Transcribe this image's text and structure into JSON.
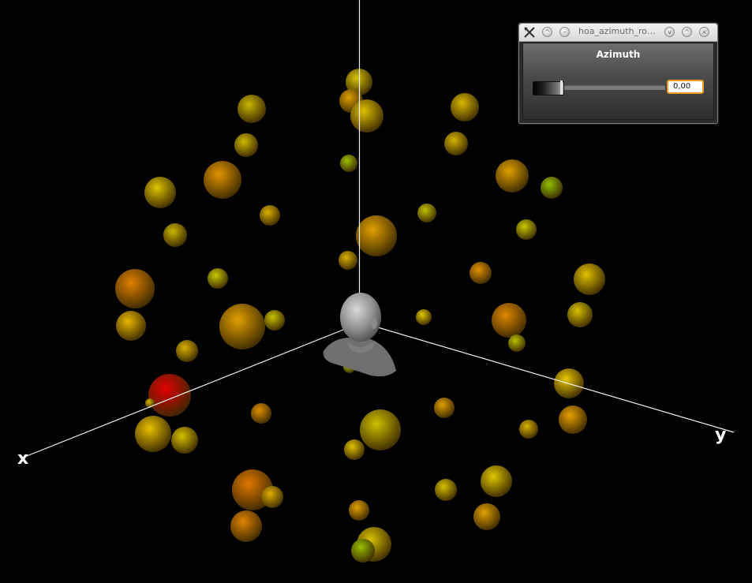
{
  "window": {
    "title": "hoa_azimuth_ro…",
    "buttons": [
      "app-menu",
      "keep-above",
      "minimize-shade",
      "shade",
      "maximize",
      "close"
    ]
  },
  "control": {
    "label": "Azimuth",
    "value": "0,00",
    "slider_fraction": 0.0
  },
  "scene": {
    "axis_labels": {
      "x": "x",
      "y": "y"
    },
    "colors": {
      "background": "#000000",
      "axis": "#f2f2f2",
      "selected_source": "#e00000",
      "near_sources": "#ff8a00",
      "far_sources": "#d4d400",
      "head": "#9a9a9a"
    },
    "spheres": [
      {
        "c": "#d8c200"
      },
      {
        "c": "#e0a200"
      },
      {
        "c": "#e0c000"
      },
      {
        "c": "#c8b400"
      },
      {
        "c": "#d8b800"
      },
      {
        "c": "#d0b800"
      },
      {
        "c": "#d4b400"
      },
      {
        "c": "#9cc000"
      },
      {
        "c": "#e09400"
      },
      {
        "c": "#e0a000"
      },
      {
        "c": "#e0c400"
      },
      {
        "c": "#90c000"
      },
      {
        "c": "#d8b000"
      },
      {
        "c": "#c4c000"
      },
      {
        "c": "#ccb400"
      },
      {
        "c": "#c8c800"
      },
      {
        "c": "#e0a000"
      },
      {
        "c": "#d8b000"
      },
      {
        "c": "#c8c800"
      },
      {
        "c": "#e09000"
      },
      {
        "c": "#e08000"
      },
      {
        "c": "#e0c000"
      },
      {
        "c": "#e0a000"
      },
      {
        "c": "#e08800"
      },
      {
        "c": "#d8c000"
      },
      {
        "c": "#e8b800"
      },
      {
        "c": "#c8c000"
      },
      {
        "c": "#e0c800"
      },
      {
        "c": "#b8c000"
      },
      {
        "c": "#d8b000"
      },
      {
        "c": "#a8c400"
      },
      {
        "c": "#e8c800"
      },
      {
        "c": "#e00000"
      },
      {
        "c": "#e0b400"
      },
      {
        "c": "#e09000"
      },
      {
        "c": "#e0a000"
      },
      {
        "c": "#d0c000"
      },
      {
        "c": "#e8c000"
      },
      {
        "c": "#e8a000"
      },
      {
        "c": "#d8c000"
      },
      {
        "c": "#d8b000"
      },
      {
        "c": "#e0c000"
      },
      {
        "c": "#e07800"
      },
      {
        "c": "#e0b000"
      },
      {
        "c": "#e0c800"
      },
      {
        "c": "#d8c000"
      },
      {
        "c": "#e08400"
      },
      {
        "c": "#e0a000"
      },
      {
        "c": "#e0a000"
      },
      {
        "c": "#d8c000"
      },
      {
        "c": "#98c000"
      }
    ]
  }
}
